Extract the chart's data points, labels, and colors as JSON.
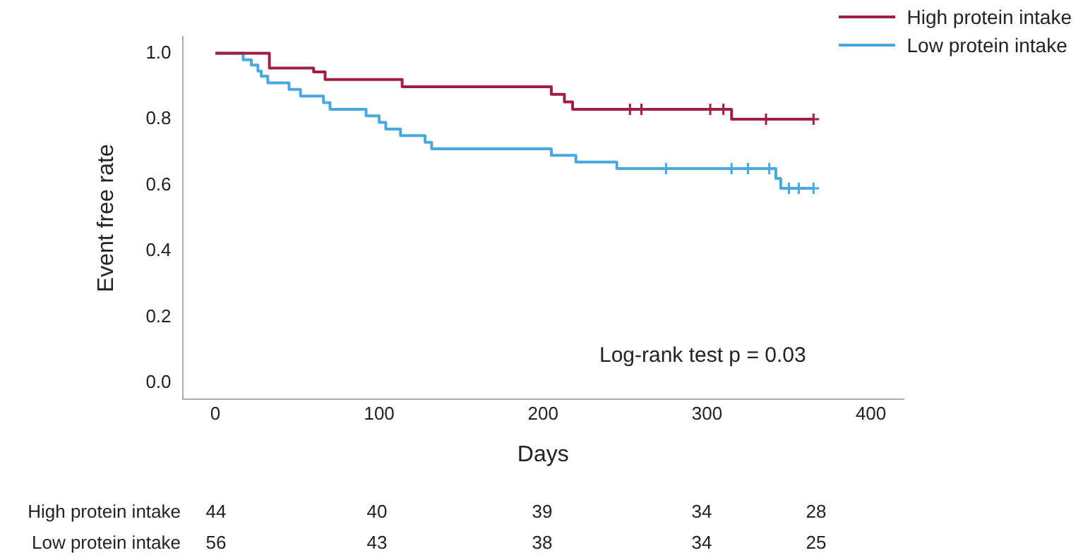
{
  "chart_data": {
    "type": "step",
    "xlabel": "Days",
    "ylabel": "Event free rate",
    "xlim": [
      -20,
      420
    ],
    "xticks": [
      0,
      100,
      200,
      300,
      400
    ],
    "ylim": [
      -0.05,
      1.05
    ],
    "yticks": [
      {
        "value": 0,
        "label": "0.0"
      },
      0.2,
      0.4,
      0.6,
      0.8,
      {
        "value": 1,
        "label": "1.0"
      }
    ],
    "grid": false,
    "legend": "top right",
    "series": [
      {
        "name": "High protein intake",
        "color": "#9e1f3f",
        "x": [
          0,
          33,
          60,
          67,
          114,
          205,
          213,
          218,
          315,
          365
        ],
        "values": [
          1,
          0.955,
          0.943,
          0.92,
          0.898,
          0.875,
          0.852,
          0.83,
          0.8,
          0.8
        ]
      },
      {
        "name": "Low protein intake",
        "color": "#4aa8e0",
        "x": [
          0,
          17,
          22,
          26,
          28,
          32,
          45,
          52,
          66,
          70,
          92,
          100,
          104,
          113,
          128,
          132,
          205,
          220,
          245,
          342,
          345,
          365
        ],
        "values": [
          1,
          0.98,
          0.964,
          0.946,
          0.93,
          0.91,
          0.89,
          0.87,
          0.85,
          0.83,
          0.81,
          0.79,
          0.77,
          0.75,
          0.73,
          0.71,
          0.69,
          0.67,
          0.65,
          0.62,
          0.59,
          0.59
        ]
      },
      {
        "type": "scatter",
        "marker": "cross",
        "color": "#9e1f3f",
        "x": [
          253,
          260,
          302,
          310,
          336,
          365
        ],
        "values": [
          0.83,
          0.83,
          0.83,
          0.83,
          0.8,
          0.8
        ]
      },
      {
        "type": "scatter",
        "marker": "cross",
        "color": "#4aa8e0",
        "x": [
          275,
          315,
          325,
          338,
          350,
          356,
          365
        ],
        "values": [
          0.65,
          0.65,
          0.65,
          0.65,
          0.59,
          0.59,
          0.59
        ]
      }
    ],
    "annotations": [
      "Log-rank test p = 0.03",
      "High protein intake",
      "44",
      "40",
      "39",
      "34",
      "28",
      "Low protein intake",
      "56",
      "43",
      "38",
      "34",
      "25"
    ]
  }
}
